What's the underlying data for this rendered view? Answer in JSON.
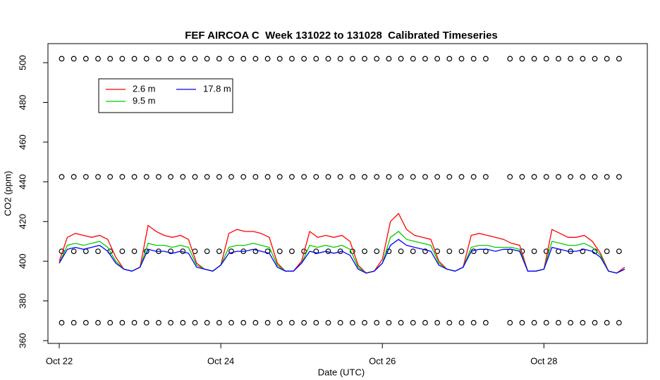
{
  "chart_data": {
    "type": "line",
    "title": "FEF AIRCOA C  Week 131022 to 131028  Calibrated Timeseries",
    "x_label": "Date (UTC)",
    "y_label": "CO2 (ppm)",
    "xlim": [
      -0.14,
      7.28
    ],
    "ylim": [
      358.6,
      509.6
    ],
    "xticks": [
      {
        "value": 0,
        "label": "Oct 22"
      },
      {
        "value": 2,
        "label": "Oct 24"
      },
      {
        "value": 4,
        "label": "Oct 26"
      },
      {
        "value": 6,
        "label": "Oct 28"
      }
    ],
    "yticks": [
      360,
      380,
      400,
      420,
      440,
      460,
      480,
      500
    ],
    "legend": "top-left",
    "x": [
      0.0,
      0.1,
      0.2,
      0.3,
      0.4,
      0.5,
      0.6,
      0.7,
      0.8,
      0.9,
      1.0,
      1.1,
      1.2,
      1.3,
      1.4,
      1.5,
      1.6,
      1.7,
      1.8,
      1.9,
      2.0,
      2.1,
      2.2,
      2.3,
      2.4,
      2.5,
      2.6,
      2.7,
      2.8,
      2.9,
      3.0,
      3.1,
      3.2,
      3.3,
      3.4,
      3.5,
      3.6,
      3.7,
      3.8,
      3.9,
      4.0,
      4.1,
      4.2,
      4.3,
      4.4,
      4.5,
      4.6,
      4.7,
      4.8,
      4.9,
      5.0,
      5.1,
      5.2,
      5.3,
      5.4,
      5.5,
      5.6,
      5.7,
      5.8,
      5.9,
      6.0,
      6.1,
      6.2,
      6.3,
      6.4,
      6.5,
      6.6,
      6.7,
      6.8,
      6.9,
      7.0
    ],
    "series": [
      {
        "name": "2.6 m",
        "color": "#ff0000",
        "values": [
          400,
          412,
          414,
          413,
          412,
          413,
          411,
          402,
          396,
          395,
          397,
          418,
          415,
          413,
          412,
          413,
          411,
          399,
          396,
          395,
          398,
          414,
          416,
          415,
          415,
          414,
          412,
          399,
          395,
          395,
          400,
          415,
          412,
          413,
          412,
          413,
          410,
          398,
          394,
          395,
          401,
          420,
          424,
          416,
          413,
          412,
          411,
          400,
          396,
          395,
          397,
          413,
          414,
          413,
          412,
          411,
          409,
          408,
          395,
          395,
          396,
          416,
          414,
          412,
          412,
          413,
          410,
          404,
          395,
          394,
          397
        ]
      },
      {
        "name": "9.5 m",
        "color": "#00cd00",
        "values": [
          399,
          408,
          409,
          408,
          409,
          410,
          407,
          400,
          396,
          395,
          397,
          409,
          408,
          408,
          407,
          408,
          407,
          398,
          396,
          395,
          398,
          407,
          408,
          408,
          409,
          408,
          407,
          398,
          395,
          395,
          399,
          408,
          407,
          408,
          407,
          408,
          406,
          397,
          394,
          395,
          399,
          412,
          415,
          411,
          410,
          409,
          408,
          399,
          396,
          395,
          397,
          407,
          408,
          408,
          407,
          407,
          407,
          406,
          395,
          395,
          396,
          410,
          409,
          408,
          408,
          409,
          407,
          403,
          395,
          394,
          396
        ]
      },
      {
        "name": "17.8 m",
        "color": "#0000ff",
        "values": [
          399,
          406,
          407,
          406,
          407,
          408,
          405,
          399,
          396,
          395,
          397,
          406,
          405,
          405,
          404,
          405,
          404,
          397,
          396,
          395,
          398,
          404,
          405,
          405,
          406,
          405,
          404,
          397,
          395,
          395,
          399,
          405,
          404,
          405,
          404,
          405,
          403,
          396,
          394,
          395,
          399,
          408,
          411,
          408,
          407,
          406,
          405,
          398,
          396,
          395,
          397,
          405,
          406,
          406,
          405,
          406,
          406,
          405,
          395,
          395,
          396,
          407,
          406,
          405,
          405,
          406,
          405,
          402,
          395,
          394,
          396
        ]
      }
    ],
    "calibration": [
      {
        "type": "scatter",
        "color": "#000000",
        "x": [
          0.03,
          0.18,
          0.33,
          0.48,
          0.63,
          0.78,
          0.93,
          1.08,
          1.23,
          1.38,
          1.53,
          1.68,
          1.83,
          1.98,
          2.13,
          2.28,
          2.43,
          2.58,
          2.73,
          2.88,
          3.03,
          3.18,
          3.33,
          3.48,
          3.63,
          3.78,
          3.93,
          4.08,
          4.23,
          4.38,
          4.53,
          4.68,
          4.83,
          4.98,
          5.13,
          5.28,
          5.58,
          5.73,
          5.88,
          6.03,
          6.18,
          6.33,
          6.48,
          6.63,
          6.78,
          6.93
        ],
        "values": [
          502,
          502,
          502,
          502,
          502,
          502,
          502,
          502,
          502,
          502,
          502,
          502,
          502,
          502,
          502,
          502,
          502,
          502,
          502,
          502,
          502,
          502,
          502,
          502,
          502,
          502,
          502,
          502,
          502,
          502,
          502,
          502,
          502,
          502,
          502,
          502,
          502,
          502,
          502,
          502,
          502,
          502,
          502,
          502,
          502,
          502
        ]
      },
      {
        "type": "scatter",
        "color": "#000000",
        "x": [
          0.03,
          0.18,
          0.33,
          0.48,
          0.63,
          0.78,
          0.93,
          1.08,
          1.23,
          1.38,
          1.53,
          1.68,
          1.83,
          1.98,
          2.13,
          2.28,
          2.43,
          2.58,
          2.73,
          2.88,
          3.03,
          3.18,
          3.33,
          3.48,
          3.63,
          3.78,
          3.93,
          4.08,
          4.23,
          4.38,
          4.53,
          4.68,
          4.83,
          4.98,
          5.13,
          5.28,
          5.58,
          5.73,
          5.88,
          6.03,
          6.18,
          6.33,
          6.48,
          6.63,
          6.78,
          6.93
        ],
        "values": [
          442.5,
          442.5,
          442.5,
          442.5,
          442.5,
          442.5,
          442.5,
          442.5,
          442.5,
          442.5,
          442.5,
          442.5,
          442.5,
          442.5,
          442.5,
          442.5,
          442.5,
          442.5,
          442.5,
          442.5,
          442.5,
          442.5,
          442.5,
          442.5,
          442.5,
          442.5,
          442.5,
          442.5,
          442.5,
          442.5,
          442.5,
          442.5,
          442.5,
          442.5,
          442.5,
          442.5,
          442.5,
          442.5,
          442.5,
          442.5,
          442.5,
          442.5,
          442.5,
          442.5,
          442.5,
          442.5
        ]
      },
      {
        "type": "scatter",
        "color": "#000000",
        "x": [
          0.03,
          0.18,
          0.33,
          0.48,
          0.63,
          0.78,
          0.93,
          1.08,
          1.23,
          1.38,
          1.53,
          1.68,
          1.83,
          1.98,
          2.13,
          2.28,
          2.43,
          2.58,
          2.73,
          2.88,
          3.03,
          3.18,
          3.33,
          3.48,
          3.63,
          3.78,
          3.93,
          4.08,
          4.23,
          4.38,
          4.53,
          4.68,
          4.83,
          4.98,
          5.13,
          5.28,
          5.58,
          5.73,
          5.88,
          6.03,
          6.18,
          6.33,
          6.48,
          6.63,
          6.78,
          6.93
        ],
        "values": [
          405,
          405,
          405,
          405,
          405,
          405,
          405,
          405,
          405,
          405,
          405,
          405,
          405,
          405,
          405,
          405,
          405,
          405,
          405,
          405,
          405,
          405,
          405,
          405,
          405,
          405,
          405,
          405,
          405,
          405,
          405,
          405,
          405,
          405,
          405,
          405,
          405,
          405,
          405,
          405,
          405,
          405,
          405,
          405,
          405,
          405
        ]
      },
      {
        "type": "scatter",
        "color": "#000000",
        "x": [
          0.03,
          0.18,
          0.33,
          0.48,
          0.63,
          0.78,
          0.93,
          1.08,
          1.23,
          1.38,
          1.53,
          1.68,
          1.83,
          1.98,
          2.13,
          2.28,
          2.43,
          2.58,
          2.73,
          2.88,
          3.03,
          3.18,
          3.33,
          3.48,
          3.63,
          3.78,
          3.93,
          4.08,
          4.23,
          4.38,
          4.53,
          4.68,
          4.83,
          4.98,
          5.13,
          5.28,
          5.58,
          5.73,
          5.88,
          6.03,
          6.18,
          6.33,
          6.48,
          6.63,
          6.78,
          6.93
        ],
        "values": [
          369,
          369,
          369,
          369,
          369,
          369,
          369,
          369,
          369,
          369,
          369,
          369,
          369,
          369,
          369,
          369,
          369,
          369,
          369,
          369,
          369,
          369,
          369,
          369,
          369,
          369,
          369,
          369,
          369,
          369,
          369,
          369,
          369,
          369,
          369,
          369,
          369,
          369,
          369,
          369,
          369,
          369,
          369,
          369,
          369,
          369
        ]
      }
    ]
  }
}
